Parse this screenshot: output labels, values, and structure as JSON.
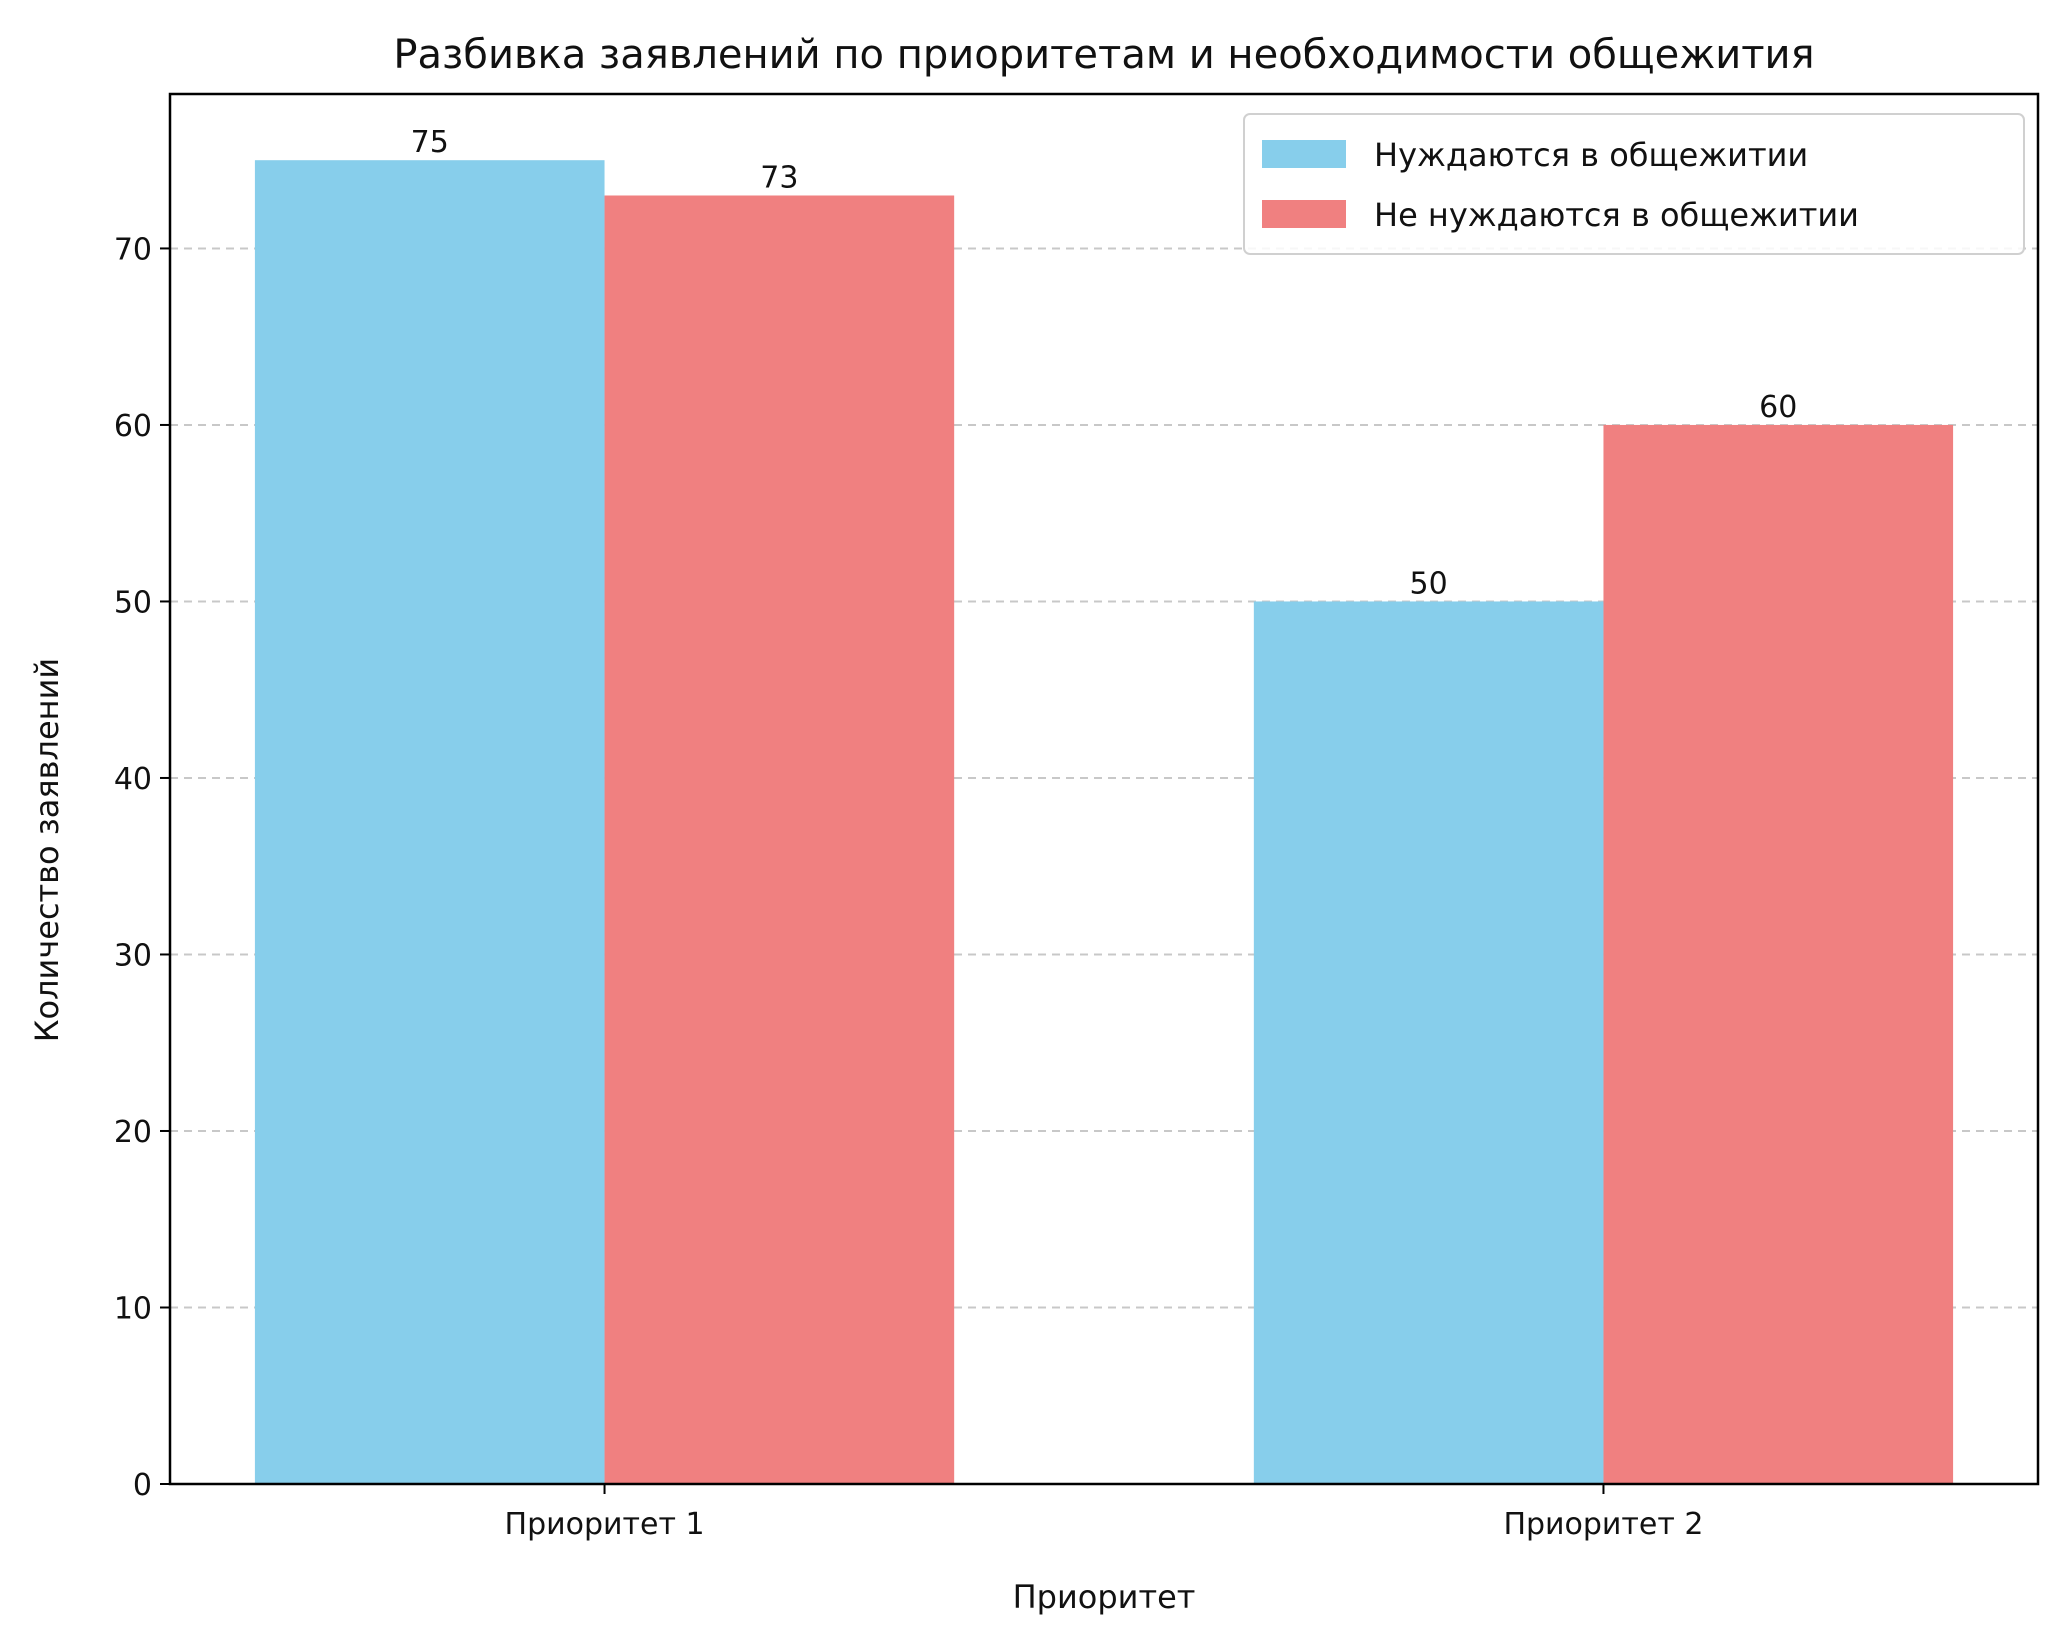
{
  "chart_data": {
    "type": "bar",
    "title": "Разбивка заявлений по приоритетам и необходимости общежития",
    "xlabel": "Приоритет",
    "ylabel": "Количество заявлений",
    "categories": [
      "Приоритет 1",
      "Приоритет 2"
    ],
    "series": [
      {
        "name": "Нуждаются в общежитии",
        "values": [
          75,
          50
        ],
        "color": "#87CEEB"
      },
      {
        "name": "Не нуждаются в общежитии",
        "values": [
          73,
          60
        ],
        "color": "#F08080"
      }
    ],
    "ylim": [
      0,
      78.75
    ],
    "yticks": [
      0,
      10,
      20,
      30,
      40,
      50,
      60,
      70
    ],
    "grid": "y-dashed",
    "legend_position": "top-right"
  }
}
